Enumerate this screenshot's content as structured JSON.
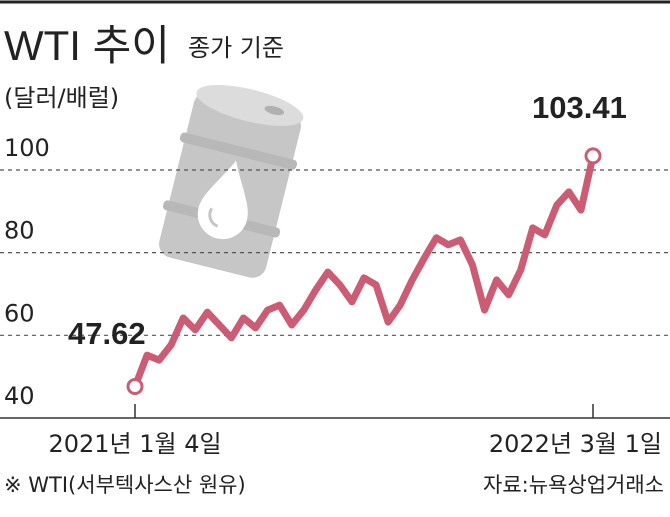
{
  "chart_data": {
    "type": "line",
    "title": "WTI 추이",
    "subtitle": "종가 기준",
    "y_label": "(달러/배럴)",
    "note": "※ WTI(서부텍사스산 원유)",
    "source": "자료:뉴욕상업거래소",
    "categories": [
      "2021년 1월 4일",
      null,
      null,
      null,
      null,
      null,
      null,
      null,
      null,
      null,
      null,
      null,
      null,
      null,
      null,
      null,
      null,
      null,
      null,
      null,
      null,
      null,
      null,
      null,
      null,
      null,
      null,
      null,
      null,
      null,
      null,
      null,
      null,
      null,
      null,
      null,
      null,
      null,
      "2022년 3월 1일"
    ],
    "values": [
      47.62,
      55.2,
      54.0,
      57.7,
      64.2,
      61.3,
      65.6,
      62.5,
      59.4,
      64.2,
      61.8,
      66.1,
      67.3,
      62.5,
      66.1,
      71.0,
      75.3,
      72.2,
      68.1,
      73.9,
      72.2,
      63.2,
      67.3,
      73.4,
      78.7,
      83.6,
      81.9,
      83.1,
      77.0,
      66.1,
      73.4,
      69.8,
      75.8,
      86.0,
      84.3,
      91.5,
      94.7,
      90.3,
      103.41
    ],
    "color": "#cc5c74",
    "ylim": [
      40,
      105
    ],
    "yticks": [
      40,
      60,
      80,
      100
    ],
    "grid": true
  }
}
